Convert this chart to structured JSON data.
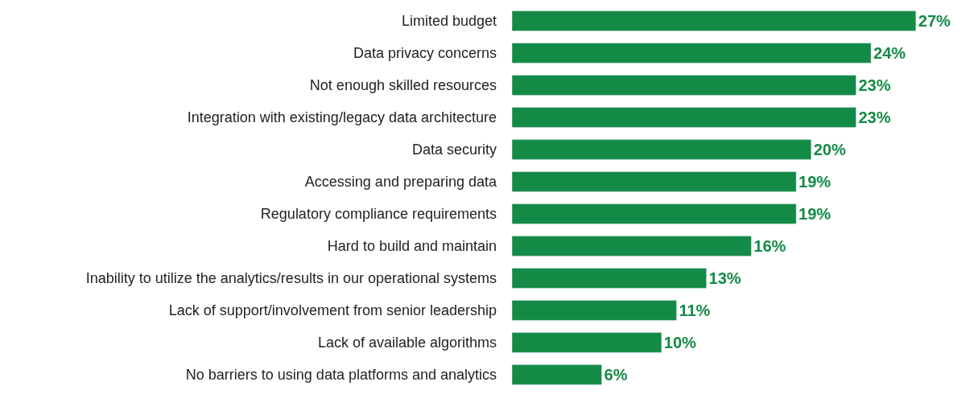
{
  "chart_data": {
    "type": "bar",
    "orientation": "horizontal",
    "data_labels": true,
    "categories": [
      "Limited budget",
      "Data privacy concerns",
      "Not enough skilled resources",
      "Integration with existing/legacy data architecture",
      "Data security",
      "Accessing and preparing data",
      "Regulatory compliance requirements",
      "Hard to build and maintain",
      "Inability to utilize the analytics/results in our operational systems",
      "Lack of support/involvement from senior leadership",
      "Lack of available algorithms",
      "No barriers to using data platforms and analytics"
    ],
    "values": [
      27,
      24,
      23,
      23,
      20,
      19,
      19,
      16,
      13,
      11,
      10,
      6
    ],
    "value_labels": [
      "27%",
      "24%",
      "23%",
      "23%",
      "20%",
      "19%",
      "19%",
      "16%",
      "13%",
      "11%",
      "10%",
      "6%"
    ],
    "color": "#138a45"
  }
}
